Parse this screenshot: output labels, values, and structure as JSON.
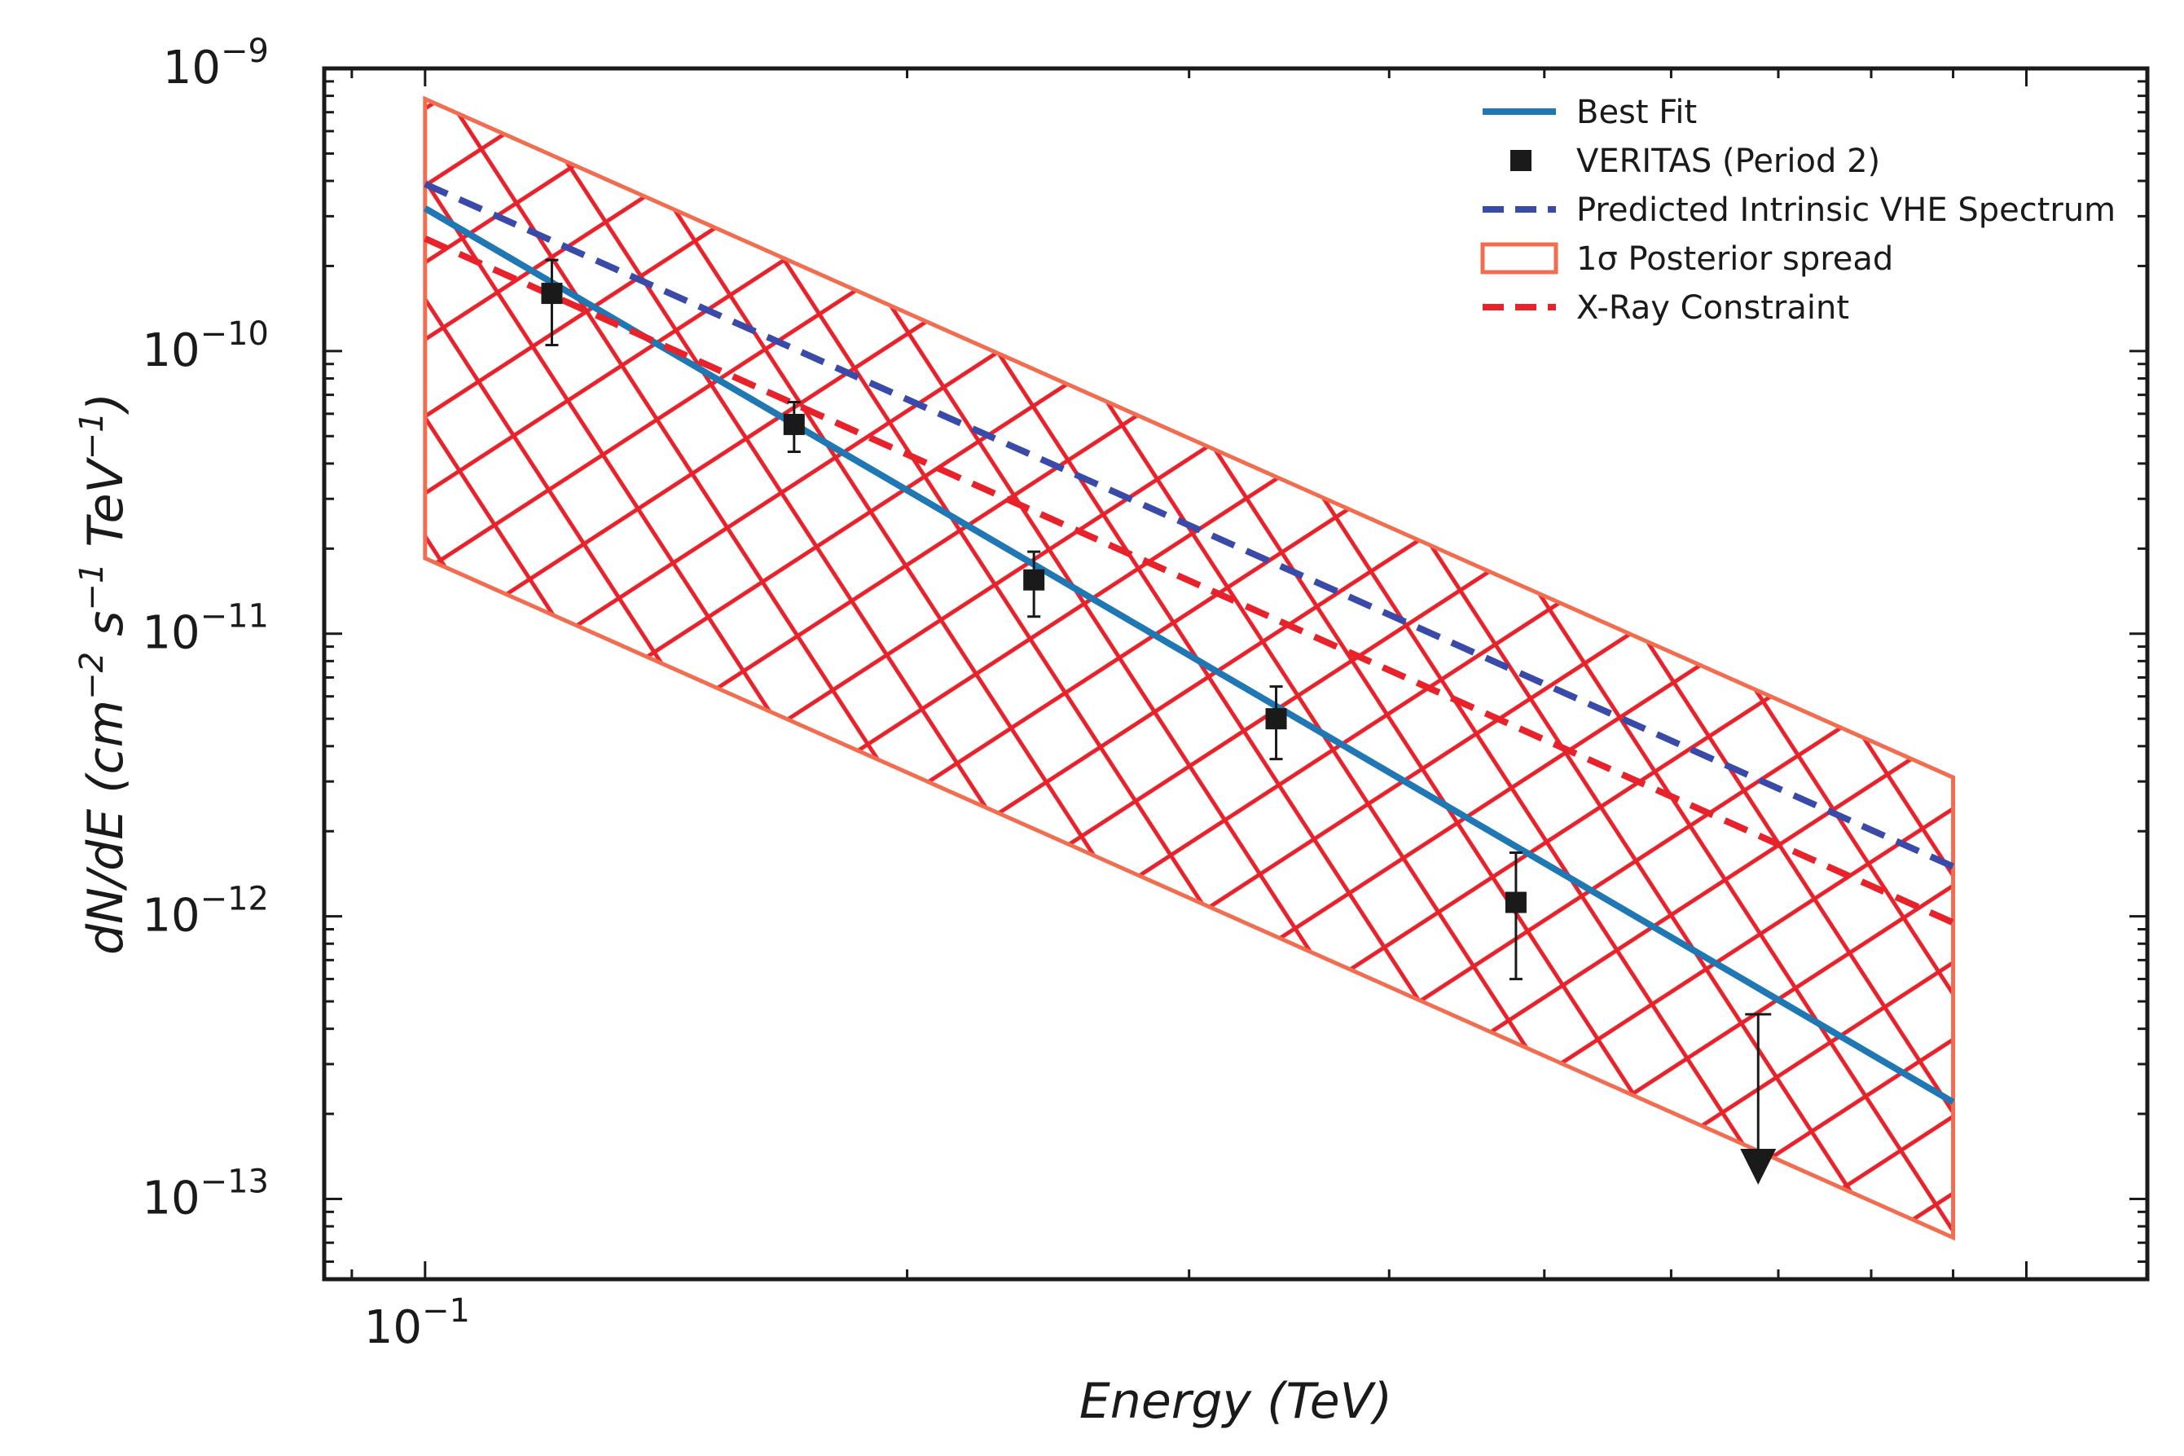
{
  "chart_data": {
    "type": "line",
    "x_scale": "log",
    "y_scale": "log",
    "xlim": [
      0.0865,
      1.19
    ],
    "ylim": [
      5.2e-14,
      1e-09
    ],
    "xlabel": "Energy (TeV)",
    "ylabel": "dN/dE (cm^-2 s^-1 TeV^-1)",
    "x_ticks": [
      {
        "base": "10",
        "exp": "−1",
        "value": 0.1
      }
    ],
    "y_ticks": [
      {
        "base": "10",
        "exp": "−9",
        "value": 1e-09
      },
      {
        "base": "10",
        "exp": "−10",
        "value": 1e-10
      },
      {
        "base": "10",
        "exp": "−11",
        "value": 1e-11
      },
      {
        "base": "10",
        "exp": "−12",
        "value": 1e-12
      },
      {
        "base": "10",
        "exp": "−13",
        "value": 1e-13
      }
    ],
    "legend_position": "top-right",
    "series": [
      {
        "name": "Best Fit",
        "style": "solid",
        "color": "#1f77b4",
        "x": [
          0.1,
          0.9
        ],
        "y": [
          3.2e-10,
          2.2e-13
        ]
      },
      {
        "name": "Predicted Intrinsic VHE Spectrum",
        "style": "dashed",
        "color": "#3a4aa8",
        "x": [
          0.1,
          0.9
        ],
        "y": [
          3.9e-10,
          1.5e-12
        ]
      },
      {
        "name": "X-Ray Constraint",
        "style": "dashed",
        "color": "#e8222b",
        "x": [
          0.1,
          0.9
        ],
        "y": [
          2.5e-10,
          9.5e-13
        ]
      }
    ],
    "points": {
      "name": "VERITAS (Period 2)",
      "color": "#1a1a1a",
      "data": [
        {
          "x": 0.12,
          "y": 1.6e-10,
          "ylo": 1.05e-10,
          "yhi": 2.1e-10
        },
        {
          "x": 0.17,
          "y": 5.5e-11,
          "ylo": 4.4e-11,
          "yhi": 6.6e-11
        },
        {
          "x": 0.24,
          "y": 1.55e-11,
          "ylo": 1.15e-11,
          "yhi": 1.95e-11
        },
        {
          "x": 0.34,
          "y": 5e-12,
          "ylo": 3.6e-12,
          "yhi": 6.5e-12
        },
        {
          "x": 0.48,
          "y": 1.12e-12,
          "ylo": 6e-13,
          "yhi": 1.68e-12
        }
      ],
      "upper_limit": {
        "x": 0.68,
        "y": 4.5e-13,
        "arrow_to": 1.2e-13
      }
    },
    "band": {
      "name": "1σ Posterior spread",
      "edge_color": "#f26d4f",
      "hatch_color": "#e8222b",
      "x": [
        0.1,
        0.9
      ],
      "upper": [
        7.8e-10,
        3.1e-12
      ],
      "lower": [
        1.85e-11,
        7.3e-14
      ]
    },
    "legend": [
      {
        "label": "Best Fit"
      },
      {
        "label": "VERITAS (Period 2)"
      },
      {
        "label": "Predicted Intrinsic VHE Spectrum"
      },
      {
        "label": "1σ Posterior spread"
      },
      {
        "label": "X-Ray Constraint"
      }
    ]
  }
}
